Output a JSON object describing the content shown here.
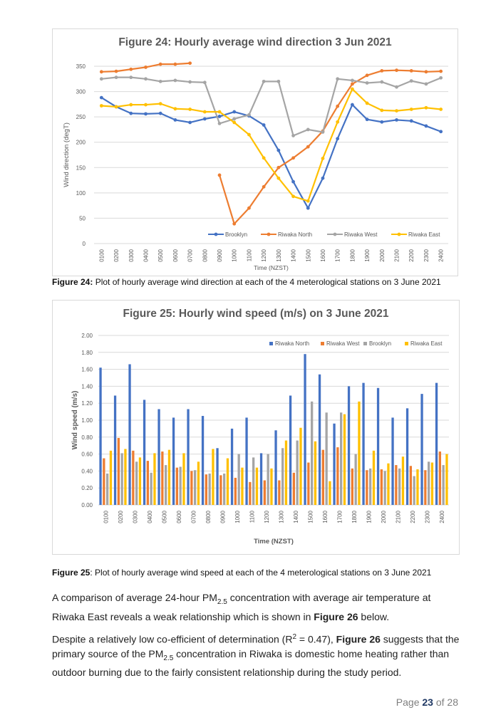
{
  "figure24": {
    "title": "Figure 24: Hourly average wind direction 3 Jun 2021",
    "ylabel": "Wind direction (degT)",
    "xlabel": "Time (NZST)",
    "caption_bold": "Figure 24:",
    "caption_text": " Plot of hourly average wind direction at each of the 4 meterological stations on 3 June 2021"
  },
  "figure25": {
    "title": "Figure 25: Hourly wind speed (m/s) on 3 June 2021",
    "ylabel": "Wind speed (m/s)",
    "xlabel": "Time (NZST)",
    "caption_bold": "Figure 25",
    "caption_text": ": Plot of hourly average wind speed at each of the 4 meterological stations on 3 June 2021"
  },
  "paragraph1": {
    "part1": "A comparison of average 24-hour PM",
    "sub": "2.5",
    "part2": " concentration with average air temperature at Riwaka East reveals a weak relationship which is shown in ",
    "bold": "Figure 26",
    "part3": " below."
  },
  "paragraph2": {
    "part1": "Despite a relatively low co-efficient of determination (R",
    "sup": "2",
    "part2": " = 0.47), ",
    "bold": "Figure 26",
    "part3": " suggests that the primary source of the PM",
    "sub": "2.5",
    "part4": " concentration in Riwaka is domestic home heating rather than outdoor burning due to the fairly consistent relationship during the study period."
  },
  "page": {
    "prefix": "Page ",
    "current": "23",
    "middle": " of ",
    "total": "28"
  },
  "chart_data": [
    {
      "type": "line",
      "title": "Figure 24: Hourly average wind direction 3 Jun 2021",
      "xlabel": "Time (NZST)",
      "ylabel": "Wind direction (degT)",
      "ylim": [
        0,
        350
      ],
      "yticks": [
        0,
        50,
        100,
        150,
        200,
        250,
        300,
        350
      ],
      "grid": true,
      "legend": "bottom-inside",
      "x": [
        "0100",
        "0200",
        "0300",
        "0400",
        "0500",
        "0600",
        "0700",
        "0800",
        "0900",
        "1000",
        "1100",
        "1200",
        "1300",
        "1400",
        "1500",
        "1600",
        "1700",
        "1800",
        "1900",
        "2000",
        "2100",
        "2200",
        "2300",
        "2400"
      ],
      "series": [
        {
          "name": "Brooklyn",
          "color": "#4472c4",
          "values": [
            288,
            270,
            257,
            256,
            257,
            244,
            239,
            246,
            251,
            260,
            252,
            234,
            184,
            122,
            70,
            129,
            207,
            274,
            245,
            240,
            244,
            242,
            232,
            221
          ]
        },
        {
          "name": "Riwaka North",
          "color": "#ed7d31",
          "values": [
            339,
            340,
            344,
            348,
            354,
            354,
            356,
            null,
            135,
            39,
            70,
            112,
            150,
            169,
            191,
            222,
            271,
            315,
            332,
            341,
            342,
            341,
            339,
            340
          ]
        },
        {
          "name": "Riwaka West",
          "color": "#a5a5a5",
          "values": [
            325,
            328,
            328,
            325,
            320,
            322,
            319,
            318,
            237,
            246,
            254,
            320,
            320,
            213,
            225,
            220,
            325,
            322,
            317,
            319,
            309,
            321,
            315,
            327
          ]
        },
        {
          "name": "Riwaka East",
          "color": "#ffc000",
          "values": [
            272,
            270,
            274,
            274,
            276,
            266,
            265,
            260,
            260,
            239,
            215,
            169,
            129,
            93,
            84,
            168,
            240,
            305,
            277,
            263,
            262,
            265,
            268,
            265
          ]
        }
      ]
    },
    {
      "type": "bar",
      "title": "Figure 25: Hourly wind speed (m/s) on 3 June 2021",
      "xlabel": "Time (NZST)",
      "ylabel": "Wind speed (m/s)",
      "ylim": [
        0,
        2.0
      ],
      "yticks": [
        "0.00",
        "0.20",
        "0.40",
        "0.60",
        "0.80",
        "1.00",
        "1.20",
        "1.40",
        "1.60",
        "1.80",
        "2.00"
      ],
      "grid": true,
      "legend": "top-right",
      "categories": [
        "0100",
        "0200",
        "0300",
        "0400",
        "0500",
        "0600",
        "0700",
        "0800",
        "0900",
        "1000",
        "1100",
        "1200",
        "1300",
        "1400",
        "1500",
        "1600",
        "1700",
        "1800",
        "1900",
        "2000",
        "2100",
        "2200",
        "2300",
        "2400"
      ],
      "series": [
        {
          "name": "Riwaka North",
          "color": "#4472c4",
          "values": [
            1.62,
            1.29,
            1.66,
            1.24,
            1.13,
            1.03,
            1.13,
            1.05,
            0.67,
            0.9,
            1.03,
            0.61,
            0.88,
            1.29,
            1.78,
            1.54,
            0.96,
            1.4,
            1.44,
            1.38,
            1.03,
            1.14,
            1.31,
            1.44
          ]
        },
        {
          "name": "Riwaka West",
          "color": "#ed7d31",
          "values": [
            0.55,
            0.79,
            0.64,
            0.52,
            0.63,
            0.44,
            0.4,
            0.36,
            0.35,
            0.32,
            0.27,
            0.29,
            0.29,
            0.38,
            0.5,
            0.65,
            0.68,
            0.43,
            0.41,
            0.42,
            0.47,
            0.46,
            0.41,
            0.63
          ]
        },
        {
          "name": "Brooklyn",
          "color": "#a5a5a5",
          "values": [
            0.37,
            0.61,
            0.51,
            0.38,
            0.47,
            0.45,
            0.41,
            0.37,
            0.37,
            0.6,
            0.56,
            0.6,
            0.67,
            0.76,
            1.22,
            1.09,
            1.09,
            0.6,
            0.43,
            0.4,
            0.43,
            0.34,
            0.51,
            0.47
          ]
        },
        {
          "name": "Riwaka East",
          "color": "#ffc000",
          "values": [
            0.64,
            0.66,
            0.56,
            0.61,
            0.65,
            0.61,
            0.51,
            0.66,
            0.55,
            0.44,
            0.44,
            0.43,
            0.76,
            0.91,
            0.75,
            0.28,
            1.07,
            1.22,
            0.64,
            0.49,
            0.57,
            0.42,
            0.5,
            0.6
          ]
        }
      ]
    }
  ]
}
